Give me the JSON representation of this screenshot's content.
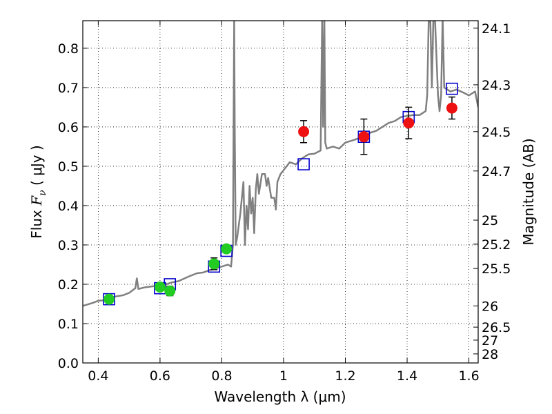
{
  "chart_data": {
    "type": "scatter",
    "title": "",
    "xlabel": "Wavelength  λ (μm)",
    "ylabel_prefix": "Flux  ",
    "ylabel_var": "F",
    "ylabel_sub": "ν",
    "ylabel_suffix": "  ( μJy )",
    "y2label": "Magnitude (AB)",
    "xlim": [
      0.35,
      1.63
    ],
    "ylim": [
      0.0,
      0.87
    ],
    "grid": true,
    "xticks": [
      0.4,
      0.6,
      0.8,
      1.0,
      1.2,
      1.4,
      1.6
    ],
    "xtick_labels": [
      "0.4",
      "0.6",
      "0.8",
      "1",
      "1.2",
      "1.4",
      "1.6"
    ],
    "yticks": [
      0.0,
      0.1,
      0.2,
      0.3,
      0.4,
      0.5,
      0.6,
      0.7,
      0.8
    ],
    "ytick_labels": [
      "0.0",
      "0.1",
      "0.2",
      "0.3",
      "0.4",
      "0.5",
      "0.6",
      "0.7",
      "0.8"
    ],
    "magnitude_ticks": [
      {
        "flux": 0.851,
        "label": "24.1"
      },
      {
        "flux": 0.707,
        "label": "24.3"
      },
      {
        "flux": 0.588,
        "label": "24.5"
      },
      {
        "flux": 0.488,
        "label": "24.7"
      },
      {
        "flux": 0.363,
        "label": "25"
      },
      {
        "flux": 0.302,
        "label": "25.2"
      },
      {
        "flux": 0.24,
        "label": "25.5"
      },
      {
        "flux": 0.145,
        "label": "26"
      },
      {
        "flux": 0.091,
        "label": "26.5"
      },
      {
        "flux": 0.058,
        "label": "27"
      },
      {
        "flux": 0.023,
        "label": "28"
      }
    ],
    "series": [
      {
        "kind": "line",
        "color": "#808080",
        "x": [
          0.35,
          0.38,
          0.4,
          0.43,
          0.45,
          0.48,
          0.5,
          0.52,
          0.525,
          0.53,
          0.55,
          0.58,
          0.6,
          0.62,
          0.64,
          0.66,
          0.68,
          0.7,
          0.72,
          0.74,
          0.76,
          0.78,
          0.8,
          0.82,
          0.83,
          0.836,
          0.838,
          0.84,
          0.842,
          0.845,
          0.85,
          0.86,
          0.87,
          0.875,
          0.88,
          0.885,
          0.89,
          0.895,
          0.9,
          0.905,
          0.91,
          0.915,
          0.92,
          0.93,
          0.94,
          0.945,
          0.95,
          0.96,
          0.97,
          0.975,
          0.98,
          0.99,
          1.0,
          1.02,
          1.04,
          1.06,
          1.08,
          1.1,
          1.12,
          1.125,
          1.128,
          1.132,
          1.135,
          1.14,
          1.16,
          1.18,
          1.2,
          1.22,
          1.24,
          1.26,
          1.28,
          1.3,
          1.32,
          1.34,
          1.36,
          1.38,
          1.4,
          1.42,
          1.44,
          1.46,
          1.465,
          1.47,
          1.475,
          1.48,
          1.485,
          1.49,
          1.5,
          1.505,
          1.51,
          1.515,
          1.52,
          1.54,
          1.56,
          1.58,
          1.6,
          1.62,
          1.63
        ],
        "y": [
          0.145,
          0.152,
          0.158,
          0.16,
          0.168,
          0.172,
          0.178,
          0.19,
          0.215,
          0.188,
          0.192,
          0.195,
          0.198,
          0.2,
          0.205,
          0.208,
          0.215,
          0.222,
          0.228,
          0.23,
          0.236,
          0.24,
          0.245,
          0.25,
          0.245,
          0.3,
          0.6,
          0.88,
          0.6,
          0.3,
          0.32,
          0.38,
          0.46,
          0.3,
          0.4,
          0.34,
          0.45,
          0.38,
          0.42,
          0.33,
          0.44,
          0.48,
          0.43,
          0.48,
          0.48,
          0.45,
          0.47,
          0.42,
          0.42,
          0.39,
          0.46,
          0.48,
          0.49,
          0.51,
          0.505,
          0.52,
          0.53,
          0.532,
          0.54,
          0.88,
          0.6,
          0.88,
          0.56,
          0.545,
          0.55,
          0.545,
          0.56,
          0.565,
          0.57,
          0.58,
          0.585,
          0.59,
          0.6,
          0.61,
          0.615,
          0.625,
          0.628,
          0.63,
          0.63,
          0.64,
          0.68,
          0.88,
          0.88,
          0.7,
          0.88,
          0.88,
          0.68,
          0.64,
          0.68,
          0.88,
          0.7,
          0.69,
          0.695,
          0.688,
          0.68,
          0.69,
          0.65
        ]
      },
      {
        "kind": "open-square",
        "color": "#0000cc",
        "points": [
          [
            0.435,
            0.162
          ],
          [
            0.6,
            0.19
          ],
          [
            0.632,
            0.2
          ],
          [
            0.775,
            0.245
          ],
          [
            0.815,
            0.285
          ],
          [
            1.065,
            0.505
          ],
          [
            1.26,
            0.575
          ],
          [
            1.405,
            0.625
          ],
          [
            1.545,
            0.697
          ]
        ]
      },
      {
        "kind": "filled-circle",
        "color": "#22cc22",
        "points": [
          [
            0.435,
            0.162,
            0.0
          ],
          [
            0.6,
            0.193,
            0.008
          ],
          [
            0.632,
            0.183,
            0.012
          ],
          [
            0.775,
            0.252,
            0.015
          ],
          [
            0.815,
            0.29,
            0.0
          ]
        ]
      },
      {
        "kind": "filled-circle",
        "color": "#ee1111",
        "points": [
          [
            1.065,
            0.588,
            0.028
          ],
          [
            1.26,
            0.575,
            0.045
          ],
          [
            1.405,
            0.61,
            0.04
          ],
          [
            1.545,
            0.648,
            0.028
          ]
        ]
      }
    ]
  }
}
